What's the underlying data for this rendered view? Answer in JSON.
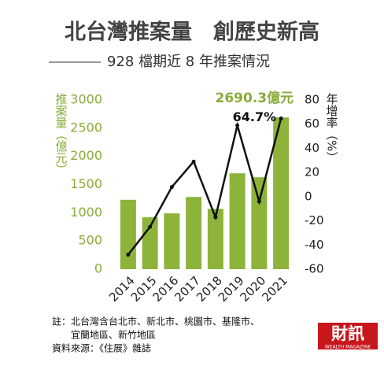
{
  "chart_data": {
    "type": "bar",
    "title": "北台灣推案量　創歷史新高",
    "subtitle": "928 檔期近 8 年推案情況",
    "y_label": "推案量（億元）",
    "y2_label": "年增率（%）",
    "categories": [
      "2014",
      "2015",
      "2016",
      "2017",
      "2018",
      "2019",
      "2020",
      "2021"
    ],
    "series": [
      {
        "type": "bar",
        "color": "#8db33a",
        "values": [
          1230,
          920,
          990,
          1280,
          1070,
          1700,
          1630,
          2690.3
        ],
        "value_labels": [
          null,
          null,
          null,
          null,
          null,
          null,
          null,
          "2690.3億元"
        ]
      },
      {
        "type": "line",
        "axis": "y2",
        "color": "#111111",
        "values": [
          -48,
          -25,
          8,
          29,
          -17,
          59,
          -4,
          64.7
        ],
        "value_labels": [
          null,
          null,
          null,
          null,
          null,
          null,
          null,
          "64.7%"
        ]
      }
    ],
    "ylim": [
      0,
      3000
    ],
    "yticks": [
      0,
      500,
      1000,
      1500,
      2000,
      2500,
      3000
    ],
    "y2lim": [
      -60,
      80
    ],
    "y2ticks": [
      -60,
      -40,
      -20,
      0,
      20,
      40,
      60,
      80
    ],
    "grid": false,
    "notes": [
      "註：北台灣含台北市、新北市、桃園市、基隆市、",
      "宜蘭地區、新竹地區",
      "資料來源：《住展》雜誌"
    ],
    "logo": {
      "text": "財訊",
      "subtitle": "WEALTH MAGAZINE"
    }
  }
}
